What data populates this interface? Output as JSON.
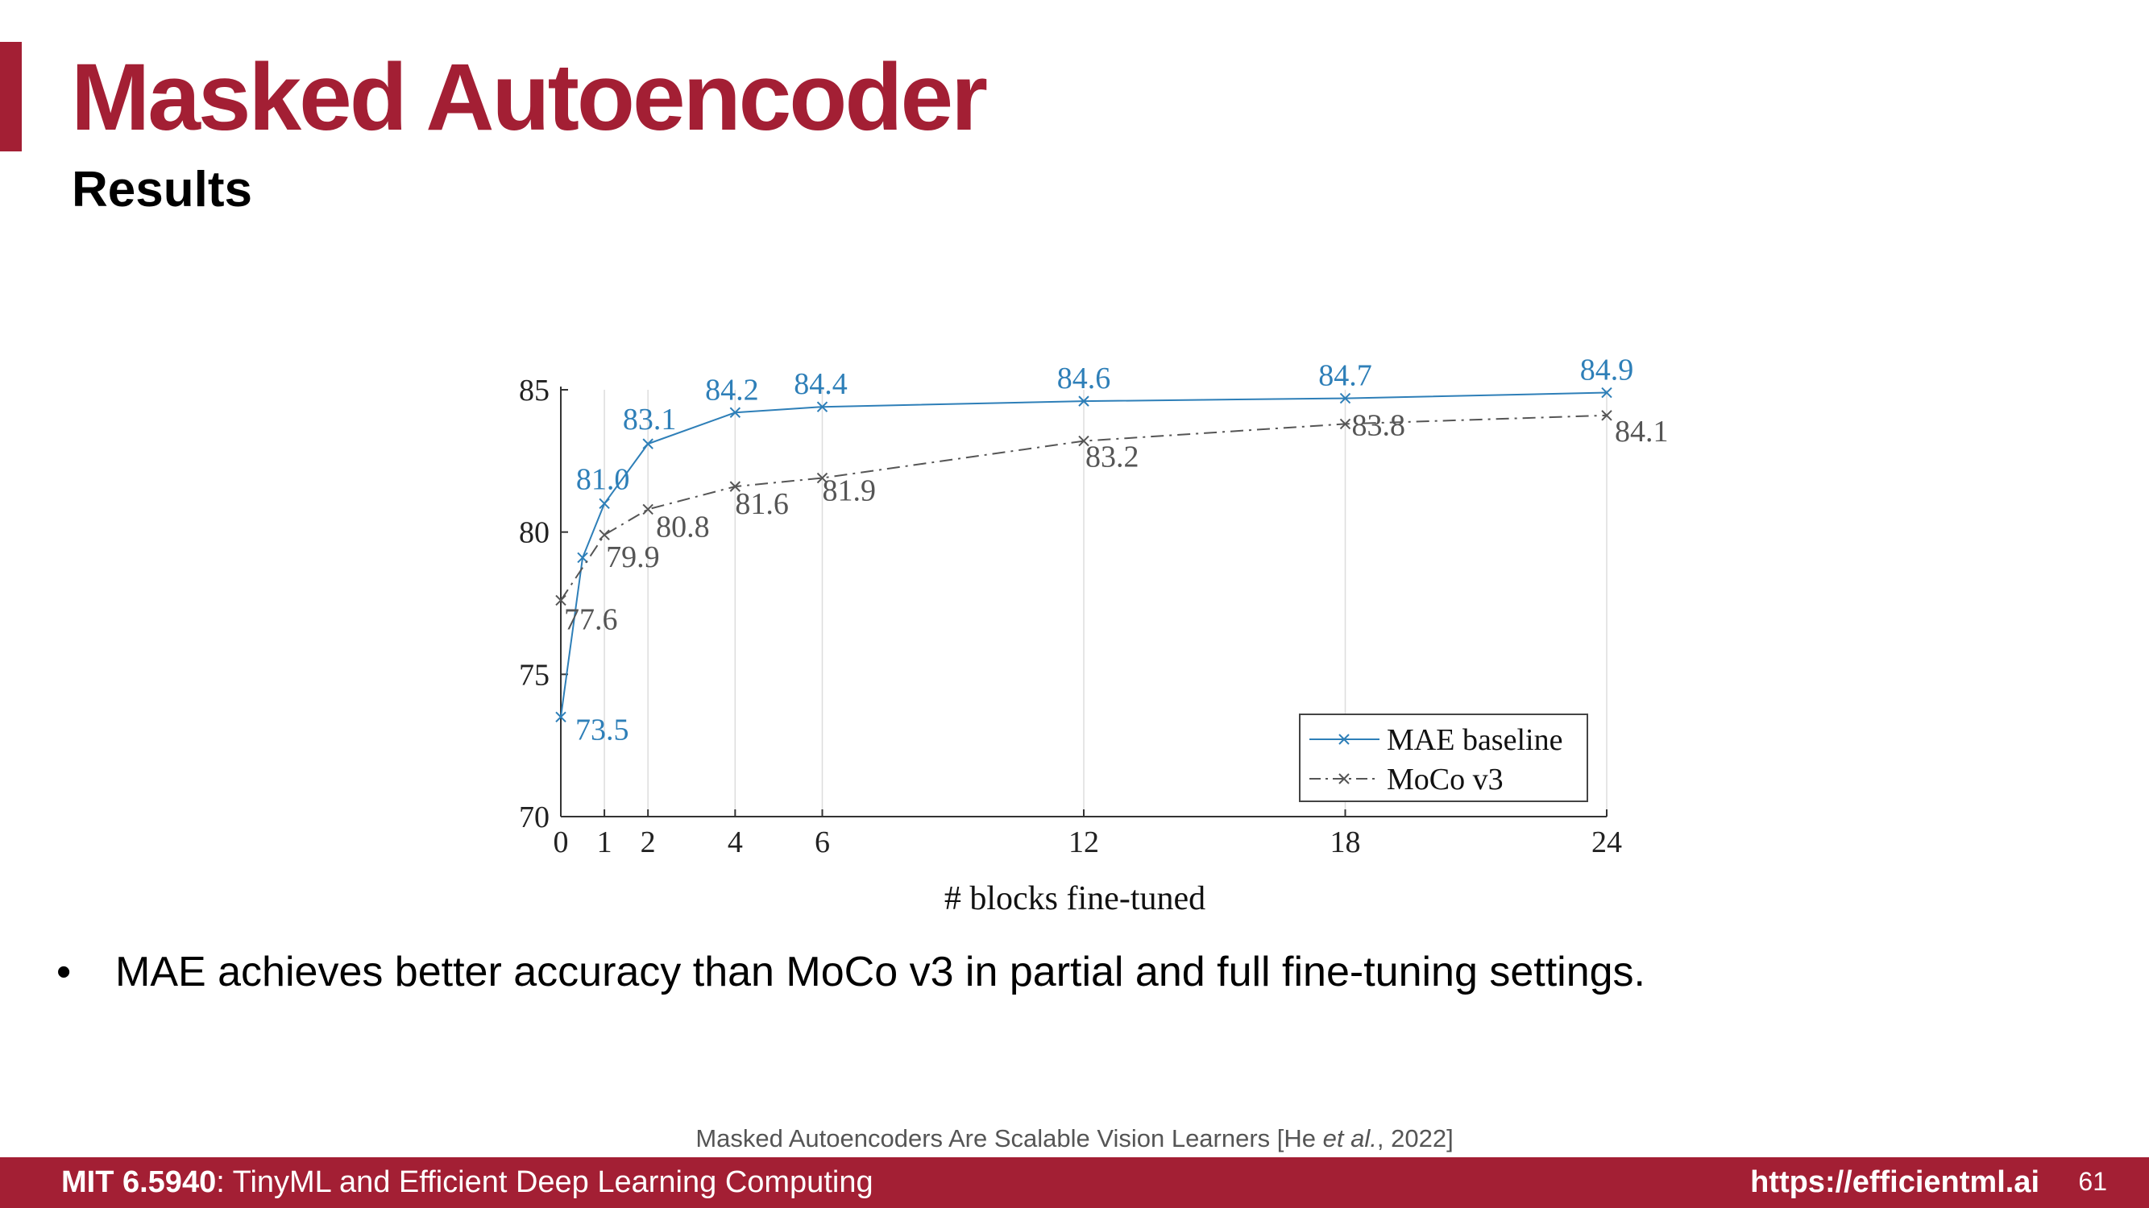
{
  "slide": {
    "title": "Masked Autoencoder",
    "subtitle": "Results",
    "bullet": "MAE achieves better accuracy than MoCo v3 in partial and full fine-tuning settings.",
    "bullet_marker": "•",
    "citation": "Masked Autoencoders Are Scalable Vision Learners [He et al., 2022]",
    "citation_parts": [
      "Masked Autoencoders Are Scalable Vision Learners [He ",
      "et al.",
      ", 2022]"
    ],
    "accent_color": "#a31f34"
  },
  "footer": {
    "course_code": "MIT 6.5940",
    "course_name": ": TinyML and Efficient Deep Learning Computing",
    "url": "https://efficientml.ai",
    "page_number": "61"
  },
  "chart_data": {
    "type": "line",
    "xlabel": "# blocks fine-tuned",
    "ylabel": "",
    "xlim": [
      0,
      24
    ],
    "ylim": [
      70,
      85
    ],
    "x_ticks": [
      0,
      1,
      2,
      4,
      6,
      12,
      18,
      24
    ],
    "y_ticks": [
      70,
      75,
      80,
      85
    ],
    "grid": "vertical lines at labeled x points",
    "legend": "bottom-right",
    "series": [
      {
        "name": "MAE baseline",
        "color": "#2e7fb8",
        "style": "solid",
        "marker": "x",
        "x": [
          0,
          0.5,
          1,
          2,
          4,
          6,
          12,
          18,
          24
        ],
        "values": [
          73.5,
          79.1,
          81.0,
          83.1,
          84.2,
          84.4,
          84.6,
          84.7,
          84.9
        ],
        "labels": [
          "73.5",
          "",
          "81.0",
          "83.1",
          "84.2",
          "84.4",
          "84.6",
          "84.7",
          "84.9"
        ]
      },
      {
        "name": "MoCo v3",
        "color": "#555555",
        "style": "dash-dot",
        "marker": "x",
        "x": [
          0,
          1,
          2,
          4,
          6,
          12,
          18,
          24
        ],
        "values": [
          77.6,
          79.9,
          80.8,
          81.6,
          81.9,
          83.2,
          83.8,
          84.1
        ],
        "labels": [
          "77.6",
          "79.9",
          "80.8",
          "81.6",
          "81.9",
          "83.2",
          "83.8",
          "84.1"
        ]
      }
    ]
  }
}
